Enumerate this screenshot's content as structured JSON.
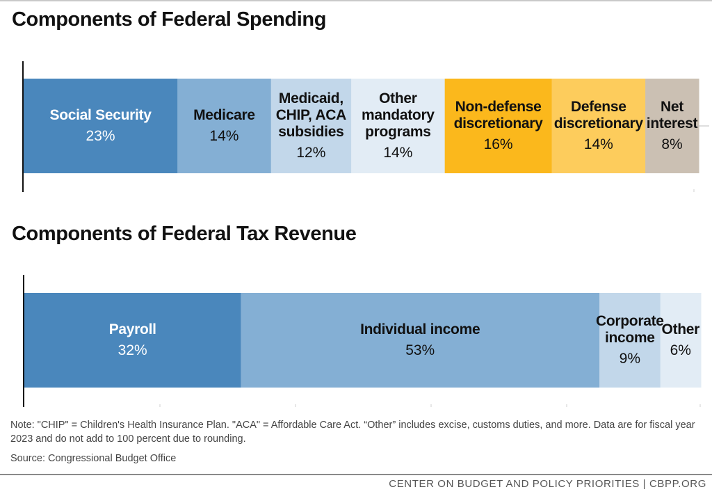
{
  "titles": {
    "spending": "Components of Federal Spending",
    "revenue": "Components of Federal Tax Revenue"
  },
  "note": "Note: \"CHIP\" = Children's Health Insurance Plan. \"ACA\" = Affordable Care Act. “Other” includes excise, customs duties, and more. Data are for fiscal year 2023 and do not add to 100 percent due to rounding.",
  "source": "Source: Congressional Budget Office",
  "footer": "CENTER ON BUDGET AND POLICY PRIORITIES | CBPP.ORG",
  "colors": {
    "dark_blue": "#4a87bc",
    "mid_blue": "#84afd4",
    "light_blue": "#c2d7ea",
    "pale_blue": "#e2ecf5",
    "dark_gold": "#fbb81c",
    "light_gold": "#fdcc5c",
    "taupe": "#cbc0b3"
  },
  "chart_data": [
    {
      "type": "bar",
      "orientation": "horizontal-stacked",
      "title": "Components of Federal Spending",
      "series": [
        {
          "name": "Social Security",
          "value": 23,
          "label": "23%",
          "color": "#4a87bc",
          "text_color": "#ffffff"
        },
        {
          "name": "Medicare",
          "value": 14,
          "label": "14%",
          "color": "#84afd4",
          "text_color": "#111111"
        },
        {
          "name": "Medicaid, CHIP, ACA subsidies",
          "value": 12,
          "label": "12%",
          "color": "#c2d7ea",
          "text_color": "#111111"
        },
        {
          "name": "Other mandatory programs",
          "value": 14,
          "label": "14%",
          "color": "#e2ecf5",
          "text_color": "#111111"
        },
        {
          "name": "Non-defense discretionary",
          "value": 16,
          "label": "16%",
          "color": "#fbb81c",
          "text_color": "#111111"
        },
        {
          "name": "Defense discretionary",
          "value": 14,
          "label": "14%",
          "color": "#fdcc5c",
          "text_color": "#111111"
        },
        {
          "name": "Net interest",
          "value": 8,
          "label": "8%",
          "color": "#cbc0b3",
          "text_color": "#111111"
        }
      ],
      "display_lines": [
        [
          "Social Security"
        ],
        [
          "Medicare"
        ],
        [
          "Medicaid,",
          "CHIP, ACA",
          "subsidies"
        ],
        [
          "Other",
          "mandatory",
          "programs"
        ],
        [
          "Non-defense",
          "discretionary"
        ],
        [
          "Defense",
          "discretionary"
        ],
        [
          "Net",
          "interest"
        ]
      ]
    },
    {
      "type": "bar",
      "orientation": "horizontal-stacked",
      "title": "Components of Federal Tax Revenue",
      "series": [
        {
          "name": "Payroll",
          "value": 32,
          "label": "32%",
          "color": "#4a87bc",
          "text_color": "#ffffff"
        },
        {
          "name": "Individual income",
          "value": 53,
          "label": "53%",
          "color": "#84afd4",
          "text_color": "#111111"
        },
        {
          "name": "Corporate income",
          "value": 9,
          "label": "9%",
          "color": "#c2d7ea",
          "text_color": "#111111"
        },
        {
          "name": "Other",
          "value": 6,
          "label": "6%",
          "color": "#e2ecf5",
          "text_color": "#111111"
        }
      ],
      "display_lines": [
        [
          "Payroll"
        ],
        [
          "Individual income"
        ],
        [
          "Corporate",
          "income"
        ],
        [
          "Other"
        ]
      ]
    }
  ]
}
